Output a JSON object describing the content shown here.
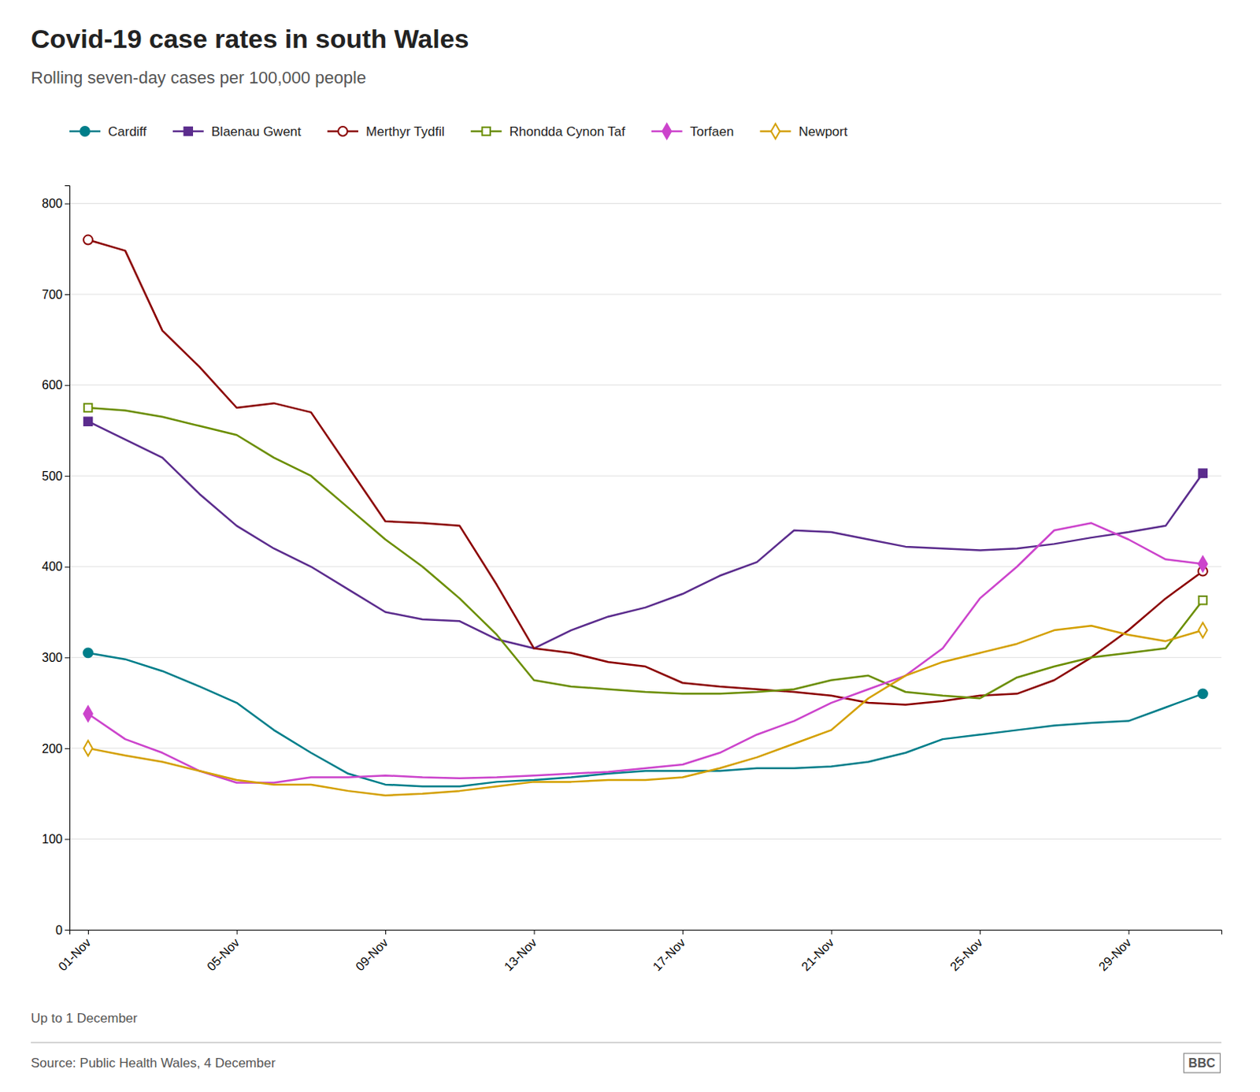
{
  "chart_data": {
    "type": "line",
    "title": "Covid-19 case rates in south Wales",
    "subtitle": "Rolling seven-day cases per 100,000 people",
    "annotations": [
      "Up to 1 December",
      "Source: Public Health Wales, 4 December",
      "BBC"
    ],
    "categories": [
      "01-Nov",
      null,
      null,
      null,
      "05-Nov",
      null,
      null,
      null,
      "09-Nov",
      null,
      null,
      null,
      "13-Nov",
      null,
      null,
      null,
      "17-Nov",
      null,
      null,
      null,
      "21-Nov",
      null,
      null,
      null,
      "25-Nov",
      null,
      null,
      null,
      "29-Nov",
      null,
      null
    ],
    "series": [
      {
        "name": "Cardiff",
        "color": "#007E8A",
        "marker": "circle",
        "values": [
          305,
          298,
          285,
          268,
          250,
          220,
          195,
          172,
          160,
          158,
          158,
          163,
          165,
          168,
          172,
          175,
          175,
          175,
          178,
          178,
          180,
          185,
          195,
          210,
          215,
          220,
          225,
          228,
          230,
          245,
          260
        ]
      },
      {
        "name": "Blaenau Gwent",
        "color": "#5B2C8D",
        "marker": "square",
        "values": [
          560,
          540,
          520,
          480,
          445,
          420,
          400,
          375,
          350,
          342,
          340,
          320,
          310,
          330,
          345,
          355,
          370,
          390,
          405,
          440,
          438,
          430,
          422,
          420,
          418,
          420,
          425,
          432,
          438,
          445,
          503
        ]
      },
      {
        "name": "Merthyr Tydfil",
        "color": "#8B0000",
        "marker": "circle-open",
        "values": [
          760,
          748,
          660,
          620,
          575,
          580,
          570,
          510,
          450,
          448,
          445,
          380,
          310,
          305,
          295,
          290,
          272,
          268,
          265,
          262,
          258,
          250,
          248,
          252,
          258,
          260,
          275,
          300,
          330,
          365,
          395
        ]
      },
      {
        "name": "Rhondda Cynon Taf",
        "color": "#6B8E00",
        "marker": "square-open",
        "values": [
          575,
          572,
          565,
          555,
          545,
          520,
          500,
          465,
          430,
          400,
          365,
          325,
          275,
          268,
          265,
          262,
          260,
          260,
          262,
          265,
          275,
          280,
          262,
          258,
          255,
          278,
          290,
          300,
          305,
          310,
          363
        ]
      },
      {
        "name": "Torfaen",
        "color": "#CC44CC",
        "marker": "diamond",
        "values": [
          238,
          210,
          195,
          175,
          162,
          162,
          168,
          168,
          170,
          168,
          167,
          168,
          170,
          172,
          174,
          178,
          182,
          195,
          215,
          230,
          250,
          265,
          280,
          310,
          365,
          400,
          440,
          448,
          430,
          408,
          403
        ]
      },
      {
        "name": "Newport",
        "color": "#D4A000",
        "marker": "diamond-open",
        "values": [
          200,
          192,
          185,
          175,
          165,
          160,
          160,
          153,
          148,
          150,
          153,
          158,
          163,
          163,
          165,
          165,
          168,
          178,
          190,
          205,
          220,
          255,
          280,
          295,
          305,
          315,
          330,
          335,
          325,
          318,
          330
        ]
      }
    ],
    "ylim": [
      0,
      820
    ],
    "yticks": [
      0,
      100,
      200,
      300,
      400,
      500,
      600,
      700,
      800
    ],
    "grid": true,
    "legend": "top"
  }
}
